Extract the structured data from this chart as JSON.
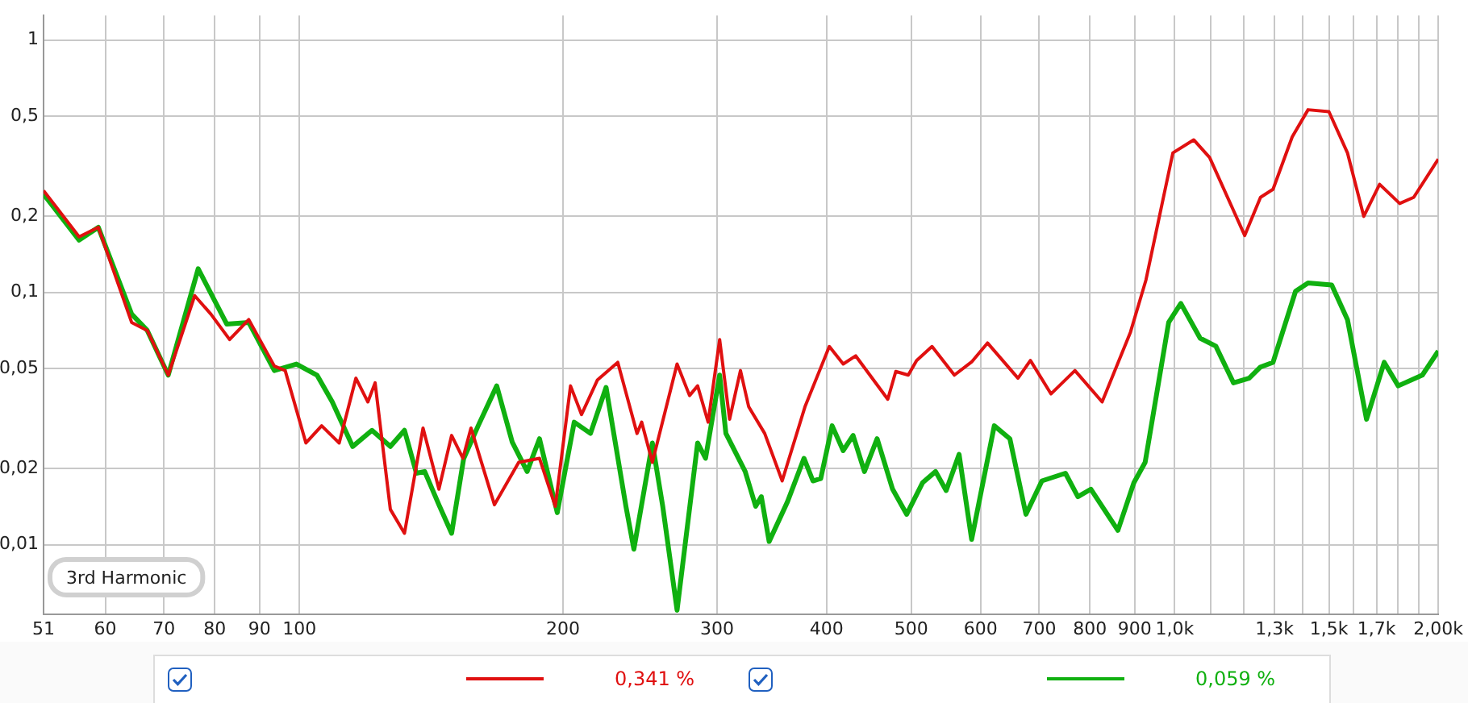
{
  "chart_data": {
    "type": "line",
    "log": "xy",
    "marker": "none",
    "grid": true,
    "xlim": [
      51,
      2000
    ],
    "ylim": [
      0.0053,
      1.25
    ],
    "xticks": [
      51,
      60,
      70,
      80,
      90,
      100,
      200,
      300,
      400,
      500,
      600,
      700,
      800,
      900,
      {
        "value": 1000,
        "label": "1,0k"
      },
      {
        "value": 1100,
        "label": null
      },
      {
        "value": 1200,
        "label": null
      },
      {
        "value": 1300,
        "label": "1,3k"
      },
      {
        "value": 1400,
        "label": null
      },
      {
        "value": 1500,
        "label": "1,5k"
      },
      {
        "value": 1600,
        "label": null
      },
      {
        "value": 1700,
        "label": "1,7k"
      },
      {
        "value": 1800,
        "label": null
      },
      {
        "value": 1900,
        "label": null
      },
      {
        "value": 2000,
        "label": "2,00k"
      }
    ],
    "yticks": [
      {
        "value": 0.01,
        "label": "0,01"
      },
      {
        "value": 0.02,
        "label": "0,02"
      },
      {
        "value": 0.05,
        "label": "0,05"
      },
      {
        "value": 0.1,
        "label": "0,1"
      },
      {
        "value": 0.2,
        "label": "0,2"
      },
      {
        "value": 0.5,
        "label": "0,5"
      },
      1
    ],
    "annotations": [
      "3rd Harmonic",
      "0,341 %",
      "0,059 %"
    ],
    "series": [
      {
        "color": "#e01010",
        "x": [
          51,
          56,
          58.9,
          64.3,
          67,
          70.8,
          75.9,
          79.2,
          83.2,
          87.5,
          93.6,
          96.3,
          101.7,
          106,
          111,
          116,
          119.7,
          122,
          127,
          131.8,
          138.4,
          144.3,
          149.2,
          153.7,
          157,
          167,
          178,
          188,
          196,
          204,
          210,
          219,
          231,
          243,
          246,
          253,
          270,
          279,
          285,
          293,
          302,
          310,
          319,
          326,
          340,
          356,
          378,
          403,
          418,
          432,
          470,
          480,
          496,
          507,
          528,
          560,
          586,
          611,
          662,
          684,
          722,
          769,
          826,
          890,
          927,
          995,
          1051,
          1096,
          1202,
          1253,
          1295,
          1362,
          1420,
          1500,
          1575,
          1644,
          1714,
          1807,
          1875,
          2000
        ],
        "values": [
          0.253,
          0.166,
          0.181,
          0.076,
          0.0706,
          0.047,
          0.097,
          0.082,
          0.065,
          0.078,
          0.051,
          0.049,
          0.0253,
          0.0296,
          0.0253,
          0.0457,
          0.0368,
          0.0438,
          0.0138,
          0.0111,
          0.029,
          0.0166,
          0.0271,
          0.022,
          0.029,
          0.0144,
          0.0212,
          0.022,
          0.0142,
          0.0426,
          0.0328,
          0.045,
          0.0528,
          0.0276,
          0.0306,
          0.0212,
          0.052,
          0.039,
          0.0426,
          0.0306,
          0.065,
          0.0314,
          0.049,
          0.0352,
          0.0276,
          0.0179,
          0.0352,
          0.061,
          0.052,
          0.056,
          0.0377,
          0.0486,
          0.047,
          0.0537,
          0.061,
          0.047,
          0.053,
          0.063,
          0.0457,
          0.0537,
          0.0396,
          0.049,
          0.0368,
          0.0696,
          0.112,
          0.357,
          0.402,
          0.342,
          0.168,
          0.238,
          0.256,
          0.413,
          0.529,
          0.52,
          0.357,
          0.2,
          0.268,
          0.225,
          0.238,
          0.337
        ]
      },
      {
        "color": "#10b010",
        "x": [
          51,
          56,
          58.9,
          64.3,
          67,
          70.8,
          76.6,
          82.6,
          87.5,
          93.6,
          99.2,
          104.7,
          109,
          115,
          121,
          127,
          131.8,
          136,
          139,
          144.3,
          149.2,
          154,
          160,
          168,
          175,
          182,
          188,
          197,
          206,
          215,
          224,
          236,
          241,
          253,
          260,
          270,
          285,
          291,
          302,
          307,
          323,
          332,
          337,
          344,
          361,
          377,
          386,
          394,
          406,
          418,
          429,
          442,
          457,
          476,
          494,
          515,
          533,
          548,
          567,
          586,
          622,
          648,
          676,
          705,
          750,
          775,
          802,
          861,
          898,
          925,
          984,
          1016,
          1069,
          1114,
          1167,
          1216,
          1253,
          1295,
          1374,
          1420,
          1511,
          1575,
          1656,
          1735,
          1800,
          1918,
          2000
        ],
        "values": [
          0.245,
          0.161,
          0.181,
          0.082,
          0.0706,
          0.047,
          0.124,
          0.0748,
          0.076,
          0.049,
          0.052,
          0.047,
          0.0368,
          0.0245,
          0.0284,
          0.0245,
          0.0284,
          0.0192,
          0.0195,
          0.0144,
          0.0111,
          0.0219,
          0.0296,
          0.0426,
          0.0255,
          0.0195,
          0.0263,
          0.0134,
          0.0306,
          0.0276,
          0.042,
          0.0142,
          0.0096,
          0.0253,
          0.0142,
          0.0055,
          0.0253,
          0.022,
          0.047,
          0.0276,
          0.0195,
          0.0142,
          0.0155,
          0.0103,
          0.0148,
          0.022,
          0.0179,
          0.0183,
          0.0296,
          0.0236,
          0.0271,
          0.0195,
          0.0263,
          0.0166,
          0.0132,
          0.0176,
          0.0195,
          0.0164,
          0.0228,
          0.0105,
          0.0296,
          0.0263,
          0.0132,
          0.0179,
          0.0192,
          0.0155,
          0.0166,
          0.0114,
          0.0176,
          0.0212,
          0.076,
          0.0904,
          0.0658,
          0.0612,
          0.0438,
          0.0457,
          0.0506,
          0.0528,
          0.101,
          0.109,
          0.107,
          0.078,
          0.0314,
          0.0528,
          0.0426,
          0.047,
          0.0585
        ]
      }
    ]
  }
}
